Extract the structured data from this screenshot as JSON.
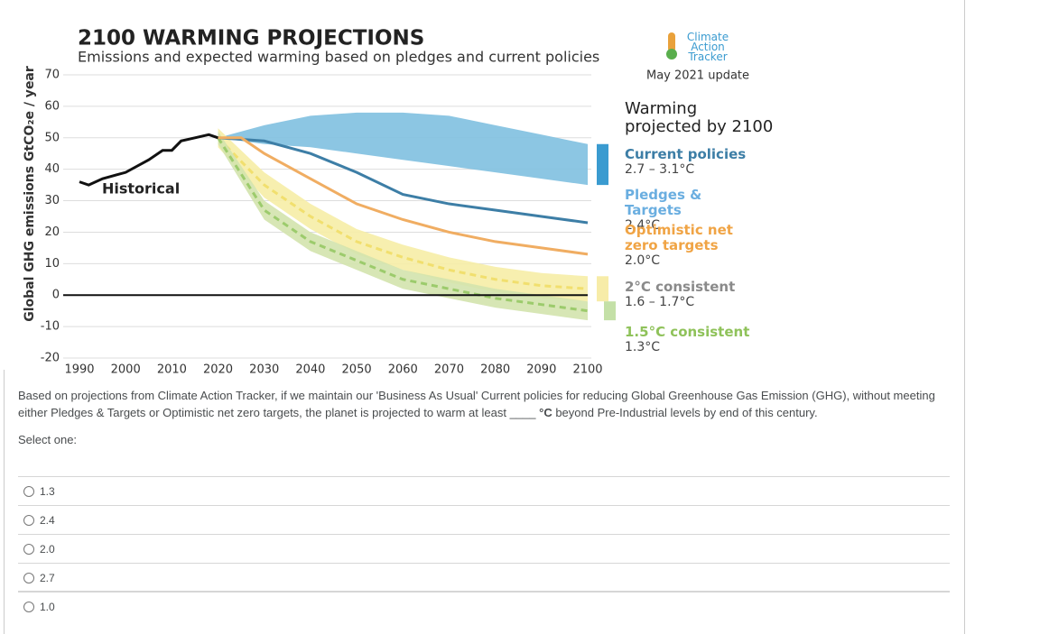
{
  "chart_data": {
    "type": "projection",
    "title": "2100 WARMING PROJECTIONS",
    "subtitle": "Emissions and expected warming based on pledges and current policies",
    "source": "Climate Action Tracker",
    "update": "May 2021 update",
    "legend_title": "Warming projected by 2100",
    "y_label": "Global GHG emissions GtCO₂e / year",
    "xlim": [
      1990,
      2100
    ],
    "xticks": [
      1990,
      2000,
      2010,
      2020,
      2030,
      2040,
      2050,
      2060,
      2070,
      2080,
      2090,
      2100
    ],
    "ylim": [
      -20,
      70
    ],
    "yticks": [
      -20,
      -10,
      0,
      10,
      20,
      30,
      40,
      50,
      60,
      70
    ],
    "grid": true,
    "series": [
      {
        "name": "Historical",
        "kind": "line",
        "color": "#111111",
        "x": [
          1990,
          1992,
          1995,
          2000,
          2005,
          2008,
          2010,
          2012,
          2015,
          2018,
          2020
        ],
        "values": [
          36,
          35,
          37,
          39,
          43,
          46,
          46,
          49,
          50,
          51,
          50
        ]
      },
      {
        "name": "Current policies",
        "warming": "2.7 – 3.1°C",
        "kind": "band",
        "color": "#7fc0e0",
        "label_color": "#3d7ea6",
        "x": [
          2020,
          2030,
          2040,
          2050,
          2060,
          2070,
          2080,
          2090,
          2100
        ],
        "high": [
          50,
          54,
          57,
          58,
          58,
          57,
          54,
          51,
          48
        ],
        "low": [
          50,
          48,
          47,
          45,
          43,
          41,
          39,
          37,
          35
        ]
      },
      {
        "name": "Pledges & Targets",
        "warming": "2.4°C",
        "kind": "line",
        "color": "#3d7ea6",
        "label_color": "#6aaee0",
        "x": [
          2020,
          2030,
          2040,
          2050,
          2060,
          2070,
          2080,
          2090,
          2100
        ],
        "values": [
          50,
          49,
          45,
          39,
          32,
          29,
          27,
          25,
          23
        ]
      },
      {
        "name": "Optimistic net zero targets",
        "warming": "2.0°C",
        "kind": "line",
        "color": "#f0ad62",
        "label_color": "#f0a445",
        "x": [
          2020,
          2025,
          2030,
          2040,
          2050,
          2060,
          2070,
          2080,
          2090,
          2100
        ],
        "values": [
          50,
          50,
          45,
          37,
          29,
          24,
          20,
          17,
          15,
          13
        ]
      },
      {
        "name": "2°C consistent",
        "warming": "1.6 – 1.7°C",
        "kind": "band",
        "color": "#f6eda6",
        "line_color": "#f1df6e",
        "label_color": "#8a8a8a",
        "x": [
          2020,
          2030,
          2040,
          2050,
          2060,
          2070,
          2080,
          2090,
          2100
        ],
        "values": [
          50,
          35,
          25,
          17,
          12,
          8,
          5,
          3,
          2
        ],
        "high": [
          53,
          39,
          29,
          21,
          16,
          12,
          9,
          7,
          6
        ],
        "low": [
          47,
          31,
          21,
          13,
          8,
          4,
          1,
          -1,
          -2
        ]
      },
      {
        "name": "1.5°C consistent",
        "warming": "1.3°C",
        "kind": "band",
        "color": "#d3e3ad",
        "line_color": "#9ccb6c",
        "label_color": "#8fc25a",
        "x": [
          2020,
          2030,
          2040,
          2050,
          2060,
          2070,
          2080,
          2090,
          2100
        ],
        "values": [
          50,
          27,
          17,
          11,
          5,
          2,
          -1,
          -3,
          -5
        ],
        "high": [
          52,
          30,
          20,
          14,
          8,
          5,
          2,
          0,
          -2
        ],
        "low": [
          48,
          24,
          14,
          8,
          2,
          -1,
          -4,
          -6,
          -8
        ]
      }
    ]
  },
  "question": {
    "text_1": "Based on projections from Climate Action Tracker, if we maintain our 'Business As Usual' Current policies for reducing Global Greenhouse Gas Emission (GHG), without meeting either Pledges & Targets or Optimistic net zero targets, the planet is projected to warm at least ",
    "blank": "____",
    "unit": "°C",
    "text_2": " beyond Pre-Industrial levels by end of this century.",
    "prompt": "Select one:",
    "options": [
      "1.3",
      "2.4",
      "2.0",
      "2.7",
      "1.0"
    ]
  }
}
